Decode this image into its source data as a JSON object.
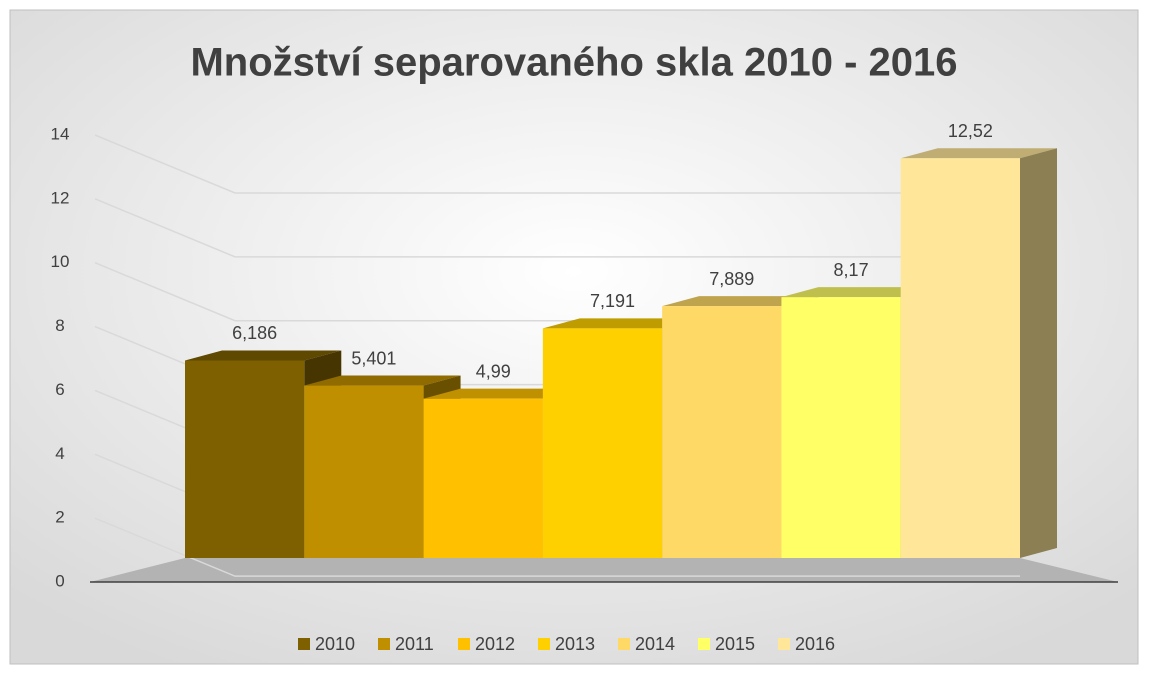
{
  "chart_data": {
    "type": "bar3d",
    "title": "Množství separovaného skla 2010 - 2016",
    "categories": [
      null
    ],
    "series": [
      {
        "name": "2010",
        "color": "#7f6000",
        "values": [
          6.186
        ],
        "value_labels": [
          "6,186"
        ]
      },
      {
        "name": "2011",
        "color": "#bf8f00",
        "values": [
          5.401
        ],
        "value_labels": [
          "5,401"
        ]
      },
      {
        "name": "2012",
        "color": "#ffc000",
        "values": [
          4.99
        ],
        "value_labels": [
          "4,99"
        ]
      },
      {
        "name": "2013",
        "color": "#ffd000",
        "values": [
          7.191
        ],
        "value_labels": [
          "7,191"
        ]
      },
      {
        "name": "2014",
        "color": "#ffd966",
        "values": [
          7.889
        ],
        "value_labels": [
          "7,889"
        ]
      },
      {
        "name": "2015",
        "color": "#ffff66",
        "values": [
          8.17
        ],
        "value_labels": [
          "8,17"
        ]
      },
      {
        "name": "2016",
        "color": "#ffe699",
        "values": [
          12.52
        ],
        "value_labels": [
          "12,52"
        ]
      }
    ],
    "ylim": [
      0,
      14
    ],
    "yticks": [
      0,
      2,
      4,
      6,
      8,
      10,
      12,
      14
    ],
    "grid": true,
    "legend": "bottom"
  }
}
